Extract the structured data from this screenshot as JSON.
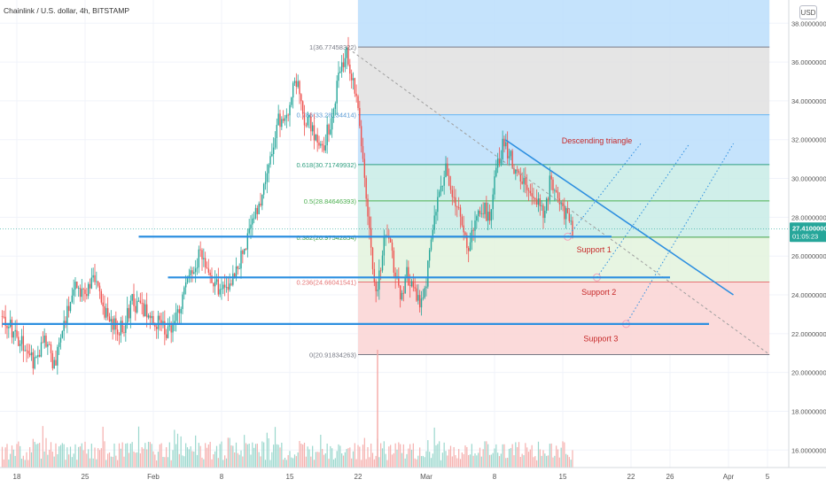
{
  "header": {
    "title": "Chainlink / U.S. dollar, 4h, BITSTAMP"
  },
  "scale_button": "USD",
  "chart_data": {
    "type": "candlestick",
    "symbol": "Chainlink / U.S. dollar",
    "interval": "4h",
    "exchange": "BITSTAMP",
    "y_axis": {
      "ylim": [
        15.1,
        39.2
      ],
      "ticks": [
        "38.00000000",
        "36.00000000",
        "34.00000000",
        "32.00000000",
        "30.00000000",
        "28.00000000",
        "26.00000000",
        "24.00000000",
        "22.00000000",
        "20.00000000",
        "18.00000000",
        "16.00000000"
      ],
      "tick_values": [
        38,
        36,
        34,
        32,
        30,
        28,
        26,
        24,
        22,
        20,
        18,
        16
      ],
      "grid": true
    },
    "x_axis": {
      "ticks": [
        {
          "label": "18",
          "day": 0
        },
        {
          "label": "25",
          "day": 7
        },
        {
          "label": "Feb",
          "day": 14
        },
        {
          "label": "8",
          "day": 21
        },
        {
          "label": "15",
          "day": 28
        },
        {
          "label": "22",
          "day": 35
        },
        {
          "label": "Mar",
          "day": 42
        },
        {
          "label": "8",
          "day": 49
        },
        {
          "label": "15",
          "day": 56
        },
        {
          "label": "22",
          "day": 63
        },
        {
          "label": "26",
          "day": 67
        },
        {
          "label": "Apr",
          "day": 73
        },
        {
          "label": "5",
          "day": 77
        }
      ]
    },
    "price_path": [
      {
        "day": -1.5,
        "price": 22.9
      },
      {
        "day": 0,
        "price": 22.0
      },
      {
        "day": 1,
        "price": 21.4
      },
      {
        "day": 2,
        "price": 20.5
      },
      {
        "day": 3,
        "price": 21.8
      },
      {
        "day": 4,
        "price": 20.4
      },
      {
        "day": 5,
        "price": 22.6
      },
      {
        "day": 6,
        "price": 24.6
      },
      {
        "day": 7,
        "price": 24.1
      },
      {
        "day": 8,
        "price": 24.8
      },
      {
        "day": 9,
        "price": 23.3
      },
      {
        "day": 10,
        "price": 22.4
      },
      {
        "day": 11,
        "price": 22.2
      },
      {
        "day": 12,
        "price": 23.7
      },
      {
        "day": 13,
        "price": 23.2
      },
      {
        "day": 14,
        "price": 22.8
      },
      {
        "day": 15,
        "price": 22.4
      },
      {
        "day": 16,
        "price": 22.0
      },
      {
        "day": 17,
        "price": 23.7
      },
      {
        "day": 18,
        "price": 25.0
      },
      {
        "day": 19,
        "price": 26.3
      },
      {
        "day": 20,
        "price": 25.2
      },
      {
        "day": 21,
        "price": 24.2
      },
      {
        "day": 22,
        "price": 24.6
      },
      {
        "day": 23,
        "price": 25.8
      },
      {
        "day": 24,
        "price": 27.2
      },
      {
        "day": 25,
        "price": 28.7
      },
      {
        "day": 26,
        "price": 30.3
      },
      {
        "day": 27,
        "price": 32.9
      },
      {
        "day": 28,
        "price": 33.6
      },
      {
        "day": 28.7,
        "price": 35.5
      },
      {
        "day": 29.5,
        "price": 33.3
      },
      {
        "day": 30.5,
        "price": 32.5
      },
      {
        "day": 31.5,
        "price": 31.6
      },
      {
        "day": 32.5,
        "price": 33.1
      },
      {
        "day": 33.3,
        "price": 35.6
      },
      {
        "day": 34.0,
        "price": 36.5
      },
      {
        "day": 34.6,
        "price": 35.1
      },
      {
        "day": 35.2,
        "price": 33.4
      },
      {
        "day": 35.8,
        "price": 30.4
      },
      {
        "day": 36.5,
        "price": 26.2
      },
      {
        "day": 37.1,
        "price": 24.0
      },
      {
        "day": 37.7,
        "price": 26.5
      },
      {
        "day": 38.3,
        "price": 27.0
      },
      {
        "day": 38.9,
        "price": 25.3
      },
      {
        "day": 39.5,
        "price": 24.0
      },
      {
        "day": 40.2,
        "price": 25.1
      },
      {
        "day": 40.8,
        "price": 24.3
      },
      {
        "day": 41.4,
        "price": 23.6
      },
      {
        "day": 42,
        "price": 24.2
      },
      {
        "day": 42.7,
        "price": 26.8
      },
      {
        "day": 43.4,
        "price": 28.9
      },
      {
        "day": 44.1,
        "price": 30.7
      },
      {
        "day": 44.7,
        "price": 29.3
      },
      {
        "day": 45.3,
        "price": 28.5
      },
      {
        "day": 45.9,
        "price": 27.2
      },
      {
        "day": 46.5,
        "price": 26.3
      },
      {
        "day": 47.2,
        "price": 27.8
      },
      {
        "day": 47.9,
        "price": 28.5
      },
      {
        "day": 48.6,
        "price": 28.0
      },
      {
        "day": 49.3,
        "price": 30.3
      },
      {
        "day": 50.0,
        "price": 31.7
      },
      {
        "day": 50.7,
        "price": 31.3
      },
      {
        "day": 51.4,
        "price": 30.3
      },
      {
        "day": 52.1,
        "price": 29.8
      },
      {
        "day": 52.8,
        "price": 29.3
      },
      {
        "day": 53.5,
        "price": 29.1
      },
      {
        "day": 54.2,
        "price": 28.1
      },
      {
        "day": 54.9,
        "price": 29.9
      },
      {
        "day": 55.6,
        "price": 29.3
      },
      {
        "day": 56.3,
        "price": 28.3
      },
      {
        "day": 57.0,
        "price": 27.4
      }
    ],
    "last_price": {
      "value": 27.41,
      "label": "27.41000000",
      "countdown": "01:05:23"
    },
    "fibonacci_retracement": {
      "start_day": 35.0,
      "end_day": 77.2,
      "levels": [
        {
          "label": "1(36.77458322)",
          "value": 36.77458322
        },
        {
          "label": "0.786(33.28134414)",
          "value": 33.28134414
        },
        {
          "label": "0.618(30.71749932)",
          "value": 30.71749932
        },
        {
          "label": "0.5(28.84646393)",
          "value": 28.84646393
        },
        {
          "label": "0.382(26.97542854)",
          "value": 26.97542854
        },
        {
          "label": "0.236(24.66041541)",
          "value": 24.66041541
        },
        {
          "label": "0(20.91834263)",
          "value": 20.91834263
        }
      ]
    },
    "support_lines": [
      {
        "label": "Support 1",
        "value": 27.0,
        "from_day": 12.5,
        "to_day": 61.0,
        "label_day": 59.2,
        "label_value": 26.2
      },
      {
        "label": "Support 2",
        "value": 24.9,
        "from_day": 15.5,
        "to_day": 67.0,
        "label_day": 59.7,
        "label_value": 24.0
      },
      {
        "label": "Support 3",
        "value": 22.5,
        "from_day": -1.5,
        "to_day": 71.0,
        "label_day": 59.9,
        "label_value": 21.6
      }
    ],
    "descending_triangle": {
      "label": "Descending triangle",
      "label_day": 59.5,
      "label_value": 31.8,
      "upper": [
        {
          "day": 50.1,
          "price": 32.0
        },
        {
          "day": 73.5,
          "price": 24.0
        }
      ],
      "base": [
        {
          "day": 50.1,
          "price": 27.0
        },
        {
          "day": 57.5,
          "price": 27.0
        }
      ]
    },
    "trend_dashed": [
      {
        "day": 34.0,
        "price": 36.7
      },
      {
        "day": 77.0,
        "price": 21.0
      }
    ],
    "dotted_channel": [
      [
        {
          "day": 56.5,
          "price": 27.0
        },
        {
          "day": 64.0,
          "price": 31.8
        }
      ],
      [
        {
          "day": 59.5,
          "price": 24.9
        },
        {
          "day": 69.0,
          "price": 31.8
        }
      ],
      [
        {
          "day": 62.5,
          "price": 22.5
        },
        {
          "day": 73.5,
          "price": 31.8
        }
      ]
    ],
    "volume": {
      "spike_day": 37.0
    },
    "colors": {
      "up": "#26a69a",
      "down": "#ef5350",
      "support": "#2d8fe0",
      "label": "#c62828",
      "fib_blue": "#bbdefb",
      "fib_grey": "#e0e0e0",
      "fib_teal": "#c8ece6",
      "fib_green": "#e3f3dd",
      "fib_red": "#fad3d3",
      "price_tag": "#26a69a"
    }
  }
}
